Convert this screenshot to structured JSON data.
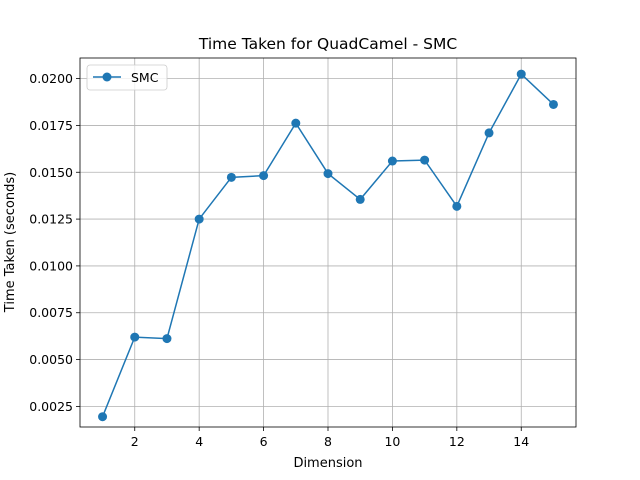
{
  "chart_data": {
    "type": "line",
    "title": "Time Taken for QuadCamel - SMC",
    "xlabel": "Dimension",
    "ylabel": "Time Taken (seconds)",
    "xlim": [
      0.3,
      15.7
    ],
    "ylim": [
      0.0014,
      0.0211
    ],
    "xticks": [
      2,
      4,
      6,
      8,
      10,
      12,
      14
    ],
    "xtick_labels": [
      "2",
      "4",
      "6",
      "8",
      "10",
      "12",
      "14"
    ],
    "yticks": [
      0.0025,
      0.005,
      0.0075,
      0.01,
      0.0125,
      0.015,
      0.0175,
      0.02
    ],
    "ytick_labels": [
      "0.0025",
      "0.0050",
      "0.0075",
      "0.0100",
      "0.0125",
      "0.0150",
      "0.0175",
      "0.0200"
    ],
    "grid": true,
    "legend": "top-left",
    "series": [
      {
        "name": "SMC",
        "color": "#1f77b4",
        "marker": "circle",
        "x": [
          1,
          2,
          3,
          4,
          5,
          6,
          7,
          8,
          9,
          10,
          11,
          12,
          13,
          14,
          15
        ],
        "y": [
          0.00195,
          0.0062,
          0.00612,
          0.0125,
          0.01473,
          0.01482,
          0.01762,
          0.01493,
          0.01355,
          0.0156,
          0.01565,
          0.01318,
          0.0171,
          0.02024,
          0.01862
        ]
      }
    ]
  }
}
